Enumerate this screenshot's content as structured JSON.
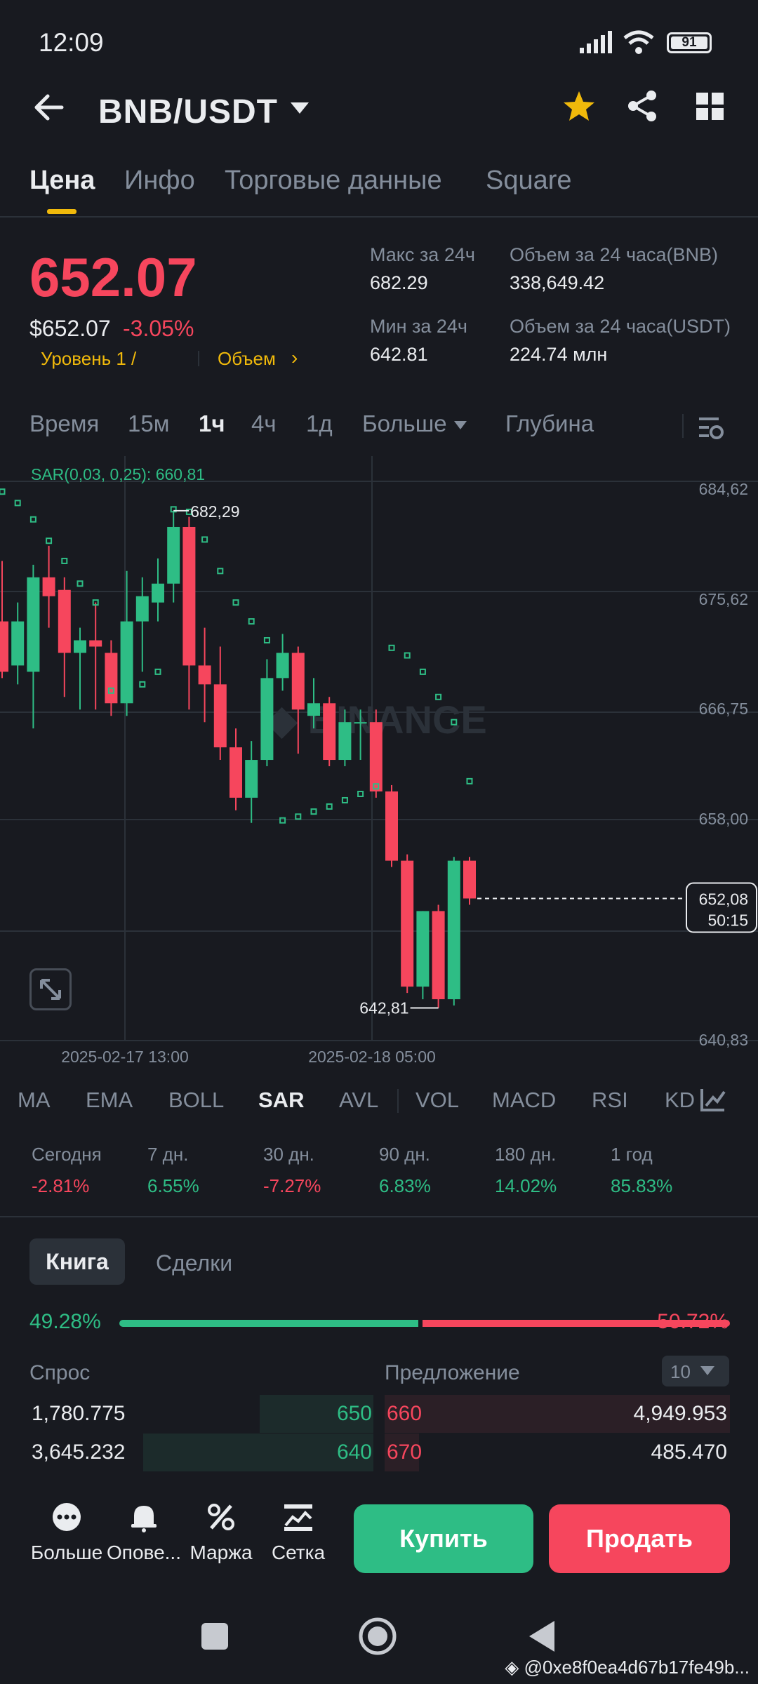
{
  "status": {
    "time": "12:09",
    "battery": "91"
  },
  "header": {
    "pair": "BNB/USDT"
  },
  "tabs": [
    "Цена",
    "Инфо",
    "Торговые данные",
    "Square"
  ],
  "price": {
    "last": "652.07",
    "usd": "$652.07",
    "change": "-3.05%",
    "level": "Уровень 1 /",
    "volume_link": "Объем"
  },
  "stats": {
    "high_label": "Макс за 24ч",
    "high": "682.29",
    "low_label": "Мин за 24ч",
    "low": "642.81",
    "vol_bnb_label": "Объем за 24 часа(BNB)",
    "vol_bnb": "338,649.42",
    "vol_usdt_label": "Объем за 24 часа(USDT)",
    "vol_usdt": "224.74 млн"
  },
  "timeframes": [
    "Время",
    "15м",
    "1ч",
    "4ч",
    "1д",
    "Больше",
    "Глубина"
  ],
  "chart_data": {
    "type": "candlestick",
    "indicator_label": "SAR(0,03, 0,25): 660,81",
    "y_ticks": [
      "684,62",
      "675,62",
      "666,75",
      "658,00",
      "640,83"
    ],
    "x_ticks": [
      "2025-02-17 13:00",
      "2025-02-18 05:00"
    ],
    "high_label": "682,29",
    "low_label": "642,81",
    "current_price": "652,08",
    "countdown": "50:15",
    "watermark": "BINANCE",
    "ylim": [
      638,
      688
    ],
    "candles": [
      {
        "o": 673.5,
        "c": 669.5,
        "h": 678.3,
        "l": 669.0
      },
      {
        "o": 670.0,
        "c": 673.5,
        "h": 675.0,
        "l": 668.5
      },
      {
        "o": 669.5,
        "c": 677.0,
        "h": 678.0,
        "l": 665.0
      },
      {
        "o": 677.0,
        "c": 675.5,
        "h": 679.5,
        "l": 673.0
      },
      {
        "o": 676.0,
        "c": 671.0,
        "h": 677.0,
        "l": 667.5
      },
      {
        "o": 671.0,
        "c": 672.0,
        "h": 673.0,
        "l": 666.5
      },
      {
        "o": 672.0,
        "c": 671.5,
        "h": 675.0,
        "l": 666.5
      },
      {
        "o": 671.0,
        "c": 667.0,
        "h": 672.0,
        "l": 666.0
      },
      {
        "o": 667.0,
        "c": 673.5,
        "h": 677.5,
        "l": 666.0
      },
      {
        "o": 673.5,
        "c": 675.5,
        "h": 677.0,
        "l": 669.5
      },
      {
        "o": 675.0,
        "c": 676.5,
        "h": 678.5,
        "l": 673.5
      },
      {
        "o": 676.5,
        "c": 681.0,
        "h": 682.29,
        "l": 675.0
      },
      {
        "o": 681.0,
        "c": 670.0,
        "h": 681.8,
        "l": 666.5
      },
      {
        "o": 670.0,
        "c": 668.5,
        "h": 673.0,
        "l": 665.5
      },
      {
        "o": 668.5,
        "c": 663.5,
        "h": 671.5,
        "l": 662.5
      },
      {
        "o": 663.5,
        "c": 659.5,
        "h": 665.0,
        "l": 658.5
      },
      {
        "o": 659.5,
        "c": 662.5,
        "h": 664.0,
        "l": 657.5
      },
      {
        "o": 662.5,
        "c": 669.0,
        "h": 670.5,
        "l": 662.0
      },
      {
        "o": 669.0,
        "c": 671.0,
        "h": 672.5,
        "l": 668.0
      },
      {
        "o": 671.0,
        "c": 666.5,
        "h": 671.5,
        "l": 663.0
      },
      {
        "o": 666.0,
        "c": 667.0,
        "h": 669.0,
        "l": 665.0
      },
      {
        "o": 667.0,
        "c": 662.5,
        "h": 667.5,
        "l": 662.0
      },
      {
        "o": 662.5,
        "c": 665.5,
        "h": 666.5,
        "l": 662.0
      },
      {
        "o": 665.5,
        "c": 665.5,
        "h": 666.5,
        "l": 662.5
      },
      {
        "o": 665.5,
        "c": 660.0,
        "h": 666.5,
        "l": 659.5
      },
      {
        "o": 660.0,
        "c": 654.5,
        "h": 660.5,
        "l": 654.0
      },
      {
        "o": 654.5,
        "c": 644.5,
        "h": 655.0,
        "l": 644.0
      },
      {
        "o": 644.5,
        "c": 650.5,
        "h": 650.5,
        "l": 643.5
      },
      {
        "o": 650.5,
        "c": 643.5,
        "h": 651.0,
        "l": 642.81
      },
      {
        "o": 643.5,
        "c": 654.5,
        "h": 654.8,
        "l": 643.0
      },
      {
        "o": 654.5,
        "c": 651.5,
        "h": 654.8,
        "l": 651.0
      }
    ],
    "sar": [
      {
        "i": 0,
        "v": 683.8
      },
      {
        "i": 1,
        "v": 682.9
      },
      {
        "i": 2,
        "v": 681.6
      },
      {
        "i": 3,
        "v": 679.9
      },
      {
        "i": 4,
        "v": 678.3
      },
      {
        "i": 5,
        "v": 676.5
      },
      {
        "i": 6,
        "v": 675.0
      },
      {
        "i": 7,
        "v": 668.0
      },
      {
        "i": 8,
        "v": 668.0
      },
      {
        "i": 9,
        "v": 668.5
      },
      {
        "i": 10,
        "v": 669.5
      },
      {
        "i": 11,
        "v": 682.4
      },
      {
        "i": 12,
        "v": 682.2
      },
      {
        "i": 13,
        "v": 680.0
      },
      {
        "i": 14,
        "v": 677.5
      },
      {
        "i": 15,
        "v": 675.0
      },
      {
        "i": 16,
        "v": 673.5
      },
      {
        "i": 17,
        "v": 672.0
      },
      {
        "i": 18,
        "v": 657.7
      },
      {
        "i": 19,
        "v": 658.0
      },
      {
        "i": 20,
        "v": 658.4
      },
      {
        "i": 21,
        "v": 658.8
      },
      {
        "i": 22,
        "v": 659.3
      },
      {
        "i": 23,
        "v": 659.8
      },
      {
        "i": 24,
        "v": 660.4
      },
      {
        "i": 25,
        "v": 671.4
      },
      {
        "i": 26,
        "v": 670.8
      },
      {
        "i": 27,
        "v": 669.5
      },
      {
        "i": 28,
        "v": 667.5
      },
      {
        "i": 29,
        "v": 665.5
      },
      {
        "i": 30,
        "v": 660.81
      }
    ]
  },
  "indicators": [
    "MA",
    "EMA",
    "BOLL",
    "SAR",
    "AVL",
    "VOL",
    "MACD",
    "RSI",
    "KD"
  ],
  "performance": [
    {
      "label": "Сегодня",
      "value": "-2.81%",
      "dir": "down"
    },
    {
      "label": "7 дн.",
      "value": "6.55%",
      "dir": "up"
    },
    {
      "label": "30 дн.",
      "value": "-7.27%",
      "dir": "down"
    },
    {
      "label": "90 дн.",
      "value": "6.83%",
      "dir": "up"
    },
    {
      "label": "180 дн.",
      "value": "14.02%",
      "dir": "up"
    },
    {
      "label": "1 год",
      "value": "85.83%",
      "dir": "up"
    }
  ],
  "book": {
    "tab_book": "Книга",
    "tab_trades": "Сделки",
    "bid_pct": "49.28%",
    "ask_pct": "50.72%",
    "bid_ratio": 0.4928,
    "bids_label": "Спрос",
    "asks_label": "Предложение",
    "depth": "10",
    "bids": [
      {
        "qty": "1,780.775",
        "price": "650",
        "depth": 0.33
      },
      {
        "qty": "3,645.232",
        "price": "640",
        "depth": 0.67
      }
    ],
    "asks": [
      {
        "price": "660",
        "qty": "4,949.953",
        "depth": 1.0
      },
      {
        "price": "670",
        "qty": "485.470",
        "depth": 0.1
      }
    ]
  },
  "bottom": {
    "more": "Больше",
    "alerts": "Опове...",
    "margin": "Маржа",
    "grid": "Сетка",
    "buy": "Купить",
    "sell": "Продать"
  },
  "watermark_user": "@0xe8f0ea4d67b17fe49b...",
  "colors": {
    "up": "#2ebd85",
    "down": "#f6465d",
    "accent": "#f0b90b",
    "bg": "#181a20"
  }
}
